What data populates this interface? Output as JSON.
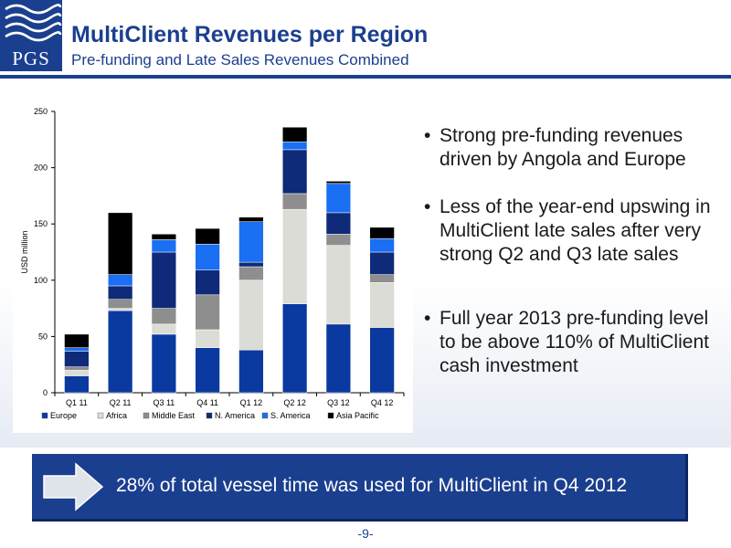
{
  "header": {
    "logo_text": "PGS",
    "title": "MultiClient Revenues per Region",
    "subtitle": "Pre-funding and Late Sales Revenues Combined"
  },
  "colors": {
    "brand_blue": "#1b3f8f",
    "europe": "#0a3aa0",
    "africa": "#dcdcd6",
    "middle_east": "#8e8e8e",
    "n_america": "#0e2a78",
    "s_america": "#1a6ff2",
    "asia_pacific": "#000000"
  },
  "chart_data": {
    "type": "bar",
    "stacked": true,
    "categories": [
      "Q1 11",
      "Q2 11",
      "Q3 11",
      "Q4 11",
      "Q1 12",
      "Q2 12",
      "Q3 12",
      "Q4 12"
    ],
    "series": [
      {
        "name": "Europe",
        "values": [
          15,
          73,
          52,
          40,
          38,
          79,
          61,
          58
        ]
      },
      {
        "name": "Africa",
        "values": [
          5,
          2,
          9,
          16,
          62,
          84,
          70,
          40
        ]
      },
      {
        "name": "Middle East",
        "values": [
          3,
          8,
          14,
          31,
          12,
          14,
          10,
          7
        ]
      },
      {
        "name": "N. America",
        "values": [
          14,
          12,
          50,
          22,
          4,
          39,
          19,
          20
        ]
      },
      {
        "name": "S. America",
        "values": [
          3,
          10,
          11,
          23,
          36,
          7,
          26,
          12
        ]
      },
      {
        "name": "Asia Pacific",
        "values": [
          12,
          55,
          5,
          14,
          4,
          13,
          2,
          10
        ]
      }
    ],
    "ylabel": "USD million",
    "xlabel": "",
    "ylim": [
      0,
      250
    ],
    "yticks": [
      0,
      50,
      100,
      150,
      200,
      250
    ],
    "grid": false,
    "legend_position": "bottom"
  },
  "bullets": [
    "Strong pre-funding revenues driven by Angola and Europe",
    "Less of the year-end upswing in MultiClient late sales after very strong Q2 and Q3 late sales",
    "Full year 2013 pre-funding level to be above 110% of MultiClient cash investment"
  ],
  "banner": {
    "text": "28% of total vessel time was used for MultiClient in Q4 2012",
    "icon": "arrow-right-icon"
  },
  "footer": {
    "page_number": "-9-"
  }
}
